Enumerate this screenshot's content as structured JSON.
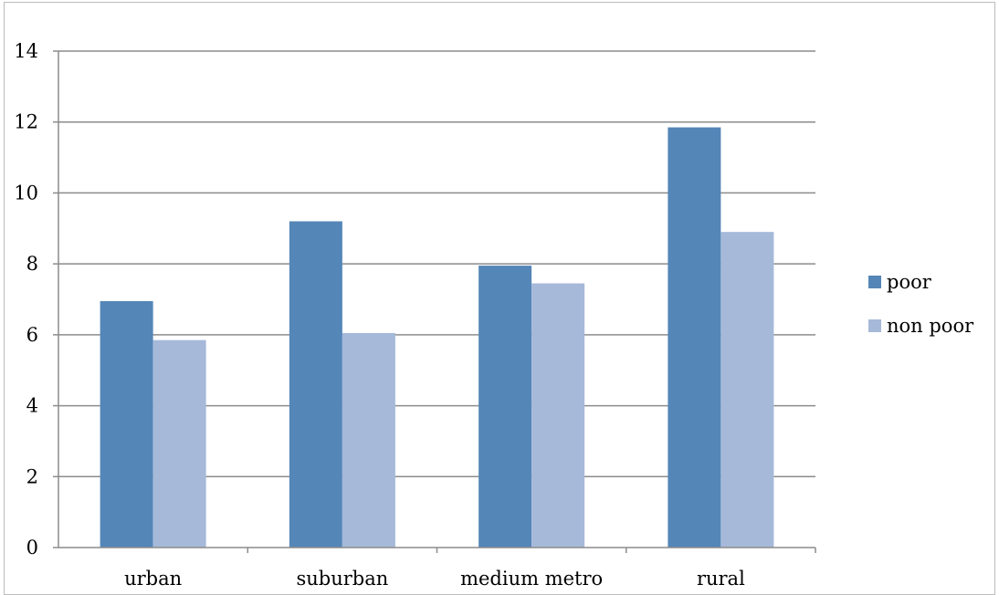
{
  "chart_data": {
    "type": "bar",
    "categories": [
      "urban",
      "suburban",
      "medium metro",
      "rural"
    ],
    "series": [
      {
        "name": "poor",
        "values": [
          6.95,
          9.2,
          7.95,
          11.85
        ],
        "color": "#5586b8"
      },
      {
        "name": "non poor",
        "values": [
          5.85,
          6.05,
          7.45,
          8.9
        ],
        "color": "#a6b9d9"
      }
    ],
    "ylim": [
      0,
      14
    ],
    "yticks": [
      0,
      2,
      4,
      6,
      8,
      10,
      12,
      14
    ],
    "grid": true,
    "legend_position": "right"
  }
}
